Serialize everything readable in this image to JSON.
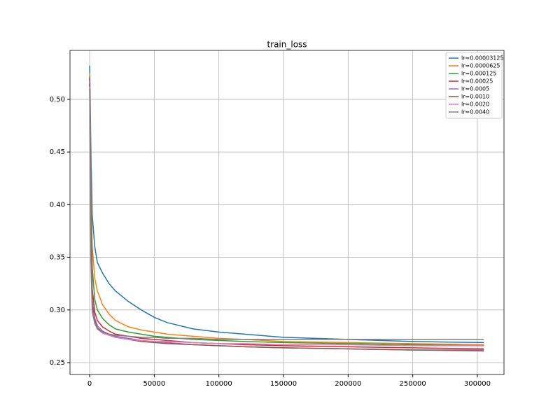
{
  "chart_data": {
    "type": "line",
    "title": "train_loss",
    "grid": true,
    "legend": "upper right",
    "x": [
      0,
      1000,
      2000,
      4000,
      6000,
      10000,
      15000,
      20000,
      30000,
      40000,
      50000,
      60000,
      80000,
      100000,
      120000,
      150000,
      200000,
      250000,
      305000
    ],
    "series": [
      {
        "name": "lr=0.00003125",
        "color": "#1f77b4",
        "values": [
          0.532,
          0.45,
          0.39,
          0.36,
          0.345,
          0.335,
          0.325,
          0.318,
          0.308,
          0.3,
          0.293,
          0.288,
          0.282,
          0.279,
          0.277,
          0.274,
          0.272,
          0.27,
          0.269
        ]
      },
      {
        "name": "lr=0.0000625",
        "color": "#ff7f0e",
        "values": [
          0.525,
          0.42,
          0.36,
          0.33,
          0.318,
          0.305,
          0.296,
          0.29,
          0.284,
          0.281,
          0.279,
          0.277,
          0.275,
          0.273,
          0.272,
          0.27,
          0.269,
          0.268,
          0.267
        ]
      },
      {
        "name": "lr=0.000125",
        "color": "#2ca02c",
        "values": [
          0.522,
          0.4,
          0.34,
          0.31,
          0.3,
          0.292,
          0.286,
          0.282,
          0.279,
          0.277,
          0.275,
          0.274,
          0.272,
          0.271,
          0.27,
          0.269,
          0.268,
          0.267,
          0.266
        ]
      },
      {
        "name": "lr=0.00025",
        "color": "#d62728",
        "values": [
          0.52,
          0.38,
          0.32,
          0.298,
          0.29,
          0.284,
          0.28,
          0.277,
          0.275,
          0.273,
          0.272,
          0.271,
          0.269,
          0.268,
          0.267,
          0.266,
          0.265,
          0.264,
          0.263
        ]
      },
      {
        "name": "lr=0.0005",
        "color": "#9467bd",
        "values": [
          0.518,
          0.37,
          0.31,
          0.292,
          0.285,
          0.28,
          0.277,
          0.275,
          0.273,
          0.271,
          0.27,
          0.269,
          0.267,
          0.266,
          0.265,
          0.264,
          0.263,
          0.262,
          0.261
        ]
      },
      {
        "name": "lr=0.0010",
        "color": "#8c564b",
        "values": [
          0.515,
          0.36,
          0.305,
          0.29,
          0.283,
          0.279,
          0.276,
          0.274,
          0.272,
          0.27,
          0.269,
          0.268,
          0.267,
          0.266,
          0.265,
          0.264,
          0.263,
          0.262,
          0.262
        ]
      },
      {
        "name": "lr=0.0020",
        "color": "#e377c2",
        "values": [
          0.512,
          0.35,
          0.3,
          0.288,
          0.282,
          0.278,
          0.276,
          0.274,
          0.272,
          0.271,
          0.27,
          0.27,
          0.269,
          0.268,
          0.268,
          0.267,
          0.267,
          0.266,
          0.266
        ]
      },
      {
        "name": "lr=0.0040",
        "color": "#7f7f7f",
        "values": [
          0.51,
          0.345,
          0.298,
          0.287,
          0.282,
          0.279,
          0.277,
          0.276,
          0.275,
          0.274,
          0.274,
          0.273,
          0.273,
          0.272,
          0.272,
          0.272,
          0.272,
          0.272,
          0.272
        ]
      }
    ],
    "xlim": [
      -15200,
      320600
    ],
    "xticks": [
      0,
      50000,
      100000,
      150000,
      200000,
      250000,
      300000
    ],
    "ylim": [
      0.2387,
      0.5465
    ],
    "yticks": [
      0.25,
      {
        "value": 0.3,
        "label": "0.30"
      },
      0.35,
      {
        "value": 0.4,
        "label": "0.40"
      },
      0.45,
      {
        "value": 0.5,
        "label": "0.50"
      }
    ]
  }
}
